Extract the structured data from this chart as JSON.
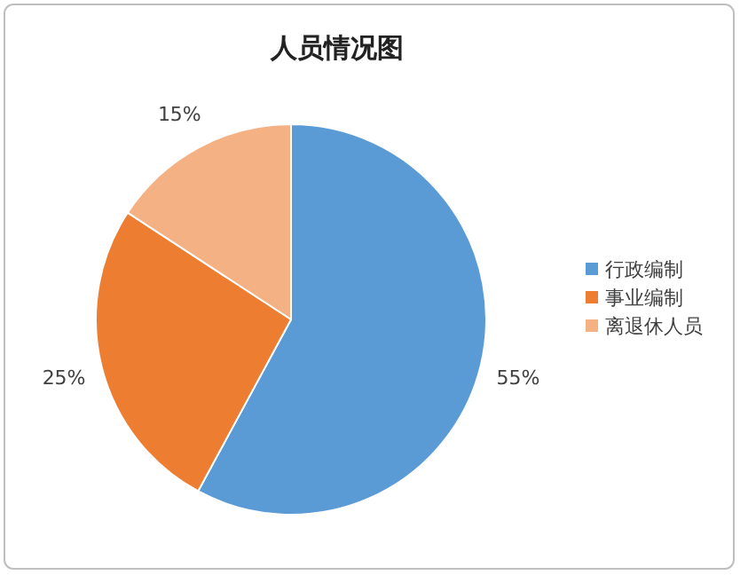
{
  "chart_data": {
    "type": "pie",
    "title": "人员情况图",
    "categories": [
      "行政编制",
      "事业编制",
      "离退休人员"
    ],
    "values": [
      55,
      25,
      15
    ],
    "colors": [
      "#5b9bd5",
      "#ed7d31",
      "#f4b183"
    ],
    "value_labels": [
      "55%",
      "25%",
      "15%"
    ],
    "legend": "right"
  }
}
